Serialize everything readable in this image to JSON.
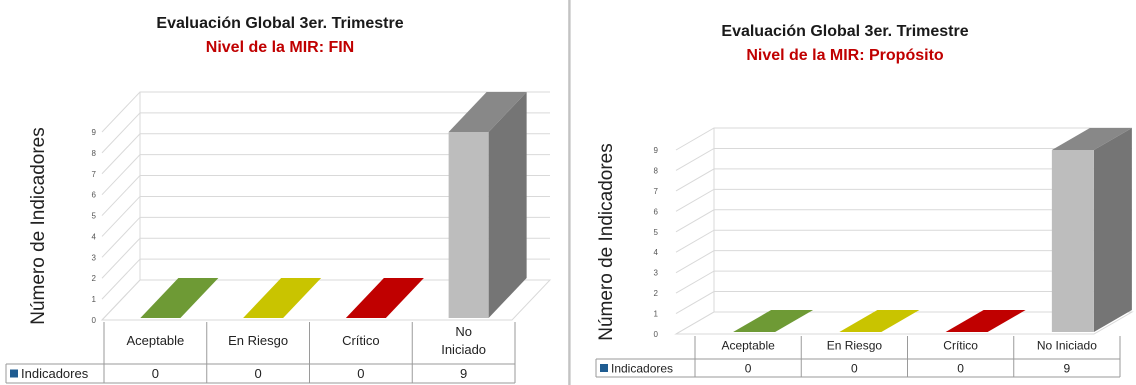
{
  "chart_data": [
    {
      "type": "bar",
      "title": "Evaluación Global 3er. Trimestre",
      "subtitle": "Nivel de la MIR: FIN",
      "ylabel": "Número de Indicadores",
      "ylim": [
        0,
        9
      ],
      "yticks": [
        "0",
        "1",
        "2",
        "3",
        "4",
        "5",
        "6",
        "7",
        "8",
        "9"
      ],
      "categories": [
        "Aceptable",
        "En Riesgo",
        "Crítico",
        "No Iniciado"
      ],
      "category_lines": [
        [
          "Aceptable"
        ],
        [
          "En Riesgo"
        ],
        [
          "Crítico"
        ],
        [
          "No",
          "Iniciado"
        ]
      ],
      "series": [
        {
          "name": "Indicadores",
          "values": [
            0,
            0,
            0,
            9
          ],
          "value_labels": [
            "0",
            "0",
            "0",
            "9"
          ]
        }
      ],
      "colors": [
        "#6e9a35",
        "#c9c400",
        "#c00000",
        "#bdbdbd"
      ],
      "legend": "data-table",
      "grid": true,
      "projection": "3d"
    },
    {
      "type": "bar",
      "title": "Evaluación Global 3er. Trimestre",
      "subtitle": "Nivel de la MIR: Propósito",
      "ylabel": "Número de Indicadores",
      "ylim": [
        0,
        9
      ],
      "yticks": [
        "0",
        "1",
        "2",
        "3",
        "4",
        "5",
        "6",
        "7",
        "8",
        "9"
      ],
      "categories": [
        "Aceptable",
        "En Riesgo",
        "Crítico",
        "No Iniciado"
      ],
      "category_lines": [
        [
          "Aceptable"
        ],
        [
          "En Riesgo"
        ],
        [
          "Crítico"
        ],
        [
          "No Iniciado"
        ]
      ],
      "series": [
        {
          "name": "Indicadores",
          "values": [
            0,
            0,
            0,
            9
          ],
          "value_labels": [
            "0",
            "0",
            "0",
            "9"
          ]
        }
      ],
      "colors": [
        "#6e9a35",
        "#c9c400",
        "#c00000",
        "#bdbdbd"
      ],
      "legend": "data-table",
      "grid": true,
      "projection": "3d"
    }
  ]
}
